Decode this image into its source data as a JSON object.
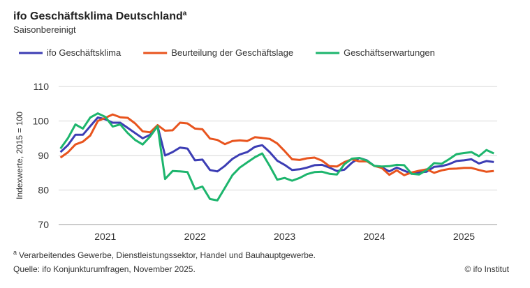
{
  "chart_data": {
    "type": "line",
    "title": "ifo Geschäftsklima Deutschland",
    "title_marker": "a",
    "subtitle": "Saisonbereinigt",
    "y_label": "Indexwerte, 2015 = 100",
    "footnote": {
      "marker": "a",
      "text": "Verarbeitendes Gewerbe, Dienstleistungssektor, Handel und Bauhauptgewerbe."
    },
    "source": "Quelle: ifo Konjunkturumfragen, November 2025.",
    "credit": "© ifo Institut",
    "grid": true,
    "legend": "top",
    "x": [
      2021.0,
      2021.083,
      2021.167,
      2021.25,
      2021.333,
      2021.417,
      2021.5,
      2021.583,
      2021.667,
      2021.75,
      2021.833,
      2021.917,
      2022.0,
      2022.083,
      2022.167,
      2022.25,
      2022.333,
      2022.417,
      2022.5,
      2022.583,
      2022.667,
      2022.75,
      2022.833,
      2022.917,
      2023.0,
      2023.083,
      2023.167,
      2023.25,
      2023.333,
      2023.417,
      2023.5,
      2023.583,
      2023.667,
      2023.75,
      2023.833,
      2023.917,
      2024.0,
      2024.083,
      2024.167,
      2024.25,
      2024.333,
      2024.417,
      2024.5,
      2024.583,
      2024.667,
      2024.75,
      2024.833,
      2024.917,
      2025.0,
      2025.083,
      2025.167,
      2025.25,
      2025.333,
      2025.417,
      2025.5,
      2025.583,
      2025.667,
      2025.75,
      2025.833
    ],
    "xlim": [
      2020.98,
      2025.87
    ],
    "xticks": [
      {
        "value": 2021.5,
        "label": "2021"
      },
      {
        "value": 2022.5,
        "label": "2022"
      },
      {
        "value": 2023.5,
        "label": "2023"
      },
      {
        "value": 2024.5,
        "label": "2024"
      },
      {
        "value": 2025.5,
        "label": "2025"
      }
    ],
    "ylim": [
      70,
      110
    ],
    "yticks": [
      70,
      80,
      90,
      100,
      110
    ],
    "series": [
      {
        "name": "ifo Geschäftsklima",
        "color": "#3c3db4",
        "values": [
          91,
          93,
          96,
          96,
          98.5,
          101,
          100.5,
          99.5,
          99.5,
          98,
          96.5,
          95,
          96,
          98.5,
          90,
          91,
          92.3,
          92,
          88.6,
          88.8,
          85.8,
          85.4,
          87,
          89,
          90.3,
          91,
          92.5,
          93,
          91,
          88.5,
          87.3,
          85.8,
          86,
          86.5,
          87.2,
          87.3,
          86.5,
          85.5,
          85.9,
          87.9,
          89.3,
          88.6,
          87,
          86.6,
          85.4,
          86.5,
          85.6,
          84.7,
          85.1,
          85.3,
          86.7,
          86.9,
          87.5,
          88.4,
          88.6,
          88.9,
          87.7,
          88.4,
          88.1
        ]
      },
      {
        "name": "Beurteilung der Geschäftslage",
        "color": "#e8541e",
        "values": [
          89.4,
          90.9,
          93.2,
          94,
          95.8,
          100,
          100.9,
          101.9,
          101.1,
          100.9,
          99.3,
          97,
          96.7,
          98.8,
          97.2,
          97.3,
          99.5,
          99.3,
          97.8,
          97.6,
          94.9,
          94.5,
          93.3,
          94.2,
          94.4,
          94.2,
          95.3,
          95.1,
          94.8,
          93.5,
          91.3,
          88.9,
          88.7,
          89.2,
          89.4,
          88.5,
          86.9,
          86.8,
          88.1,
          88.9,
          88.3,
          88.3,
          87,
          86.4,
          84.4,
          85.7,
          84.3,
          85.1,
          85.6,
          86,
          85,
          85.7,
          86.1,
          86.2,
          86.4,
          86.4,
          85.8,
          85.3,
          85.5
        ]
      },
      {
        "name": "Geschäftserwartungen",
        "color": "#1db56d",
        "values": [
          92,
          95,
          99,
          97.8,
          101,
          102.2,
          101.2,
          98.4,
          99,
          96.5,
          94.5,
          93.2,
          95.5,
          98.5,
          83.2,
          85.5,
          85.4,
          85.2,
          80.3,
          81,
          77.4,
          77,
          80.6,
          84.3,
          86.5,
          88,
          89.5,
          90.6,
          87,
          83,
          83.5,
          82.7,
          83.5,
          84.6,
          85.2,
          85.3,
          84.7,
          84.5,
          87.5,
          89.1,
          89.3,
          88.5,
          87,
          86.8,
          86.9,
          87.3,
          87.2,
          84.7,
          84.5,
          85.8,
          87.8,
          87.6,
          88.9,
          90.4,
          90.7,
          91,
          89.8,
          91.6,
          90.6
        ]
      }
    ]
  }
}
